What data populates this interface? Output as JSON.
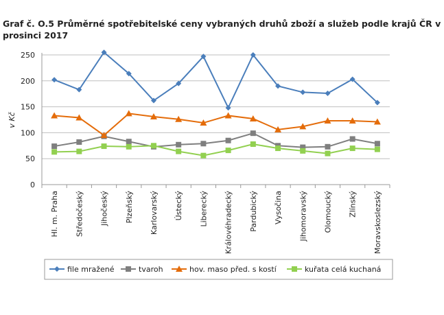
{
  "chart_data": {
    "type": "line",
    "title": "Graf č. O.5 Průměrné spotřebitelské ceny vybraných druhů zboží a služeb podle krajů ČR v prosinci 2017",
    "ylabel": "v Kč",
    "xlabel": "",
    "ylim": [
      0,
      250
    ],
    "yticks": [
      0,
      50,
      100,
      150,
      200,
      250
    ],
    "grid": true,
    "legend": "bottom",
    "categories": [
      "Hl. m. Praha",
      "Středočeský",
      "Jihočeský",
      "Plzeňský",
      "Karlovarský",
      "Ústecký",
      "Liberecký",
      "Královéhradecký",
      "Pardubický",
      "Vysočina",
      "Jihomoravský",
      "Olomoucký",
      "Zlínský",
      "Moravskoslezský"
    ],
    "series": [
      {
        "name": "file mražené",
        "color": "#4a7ebb",
        "marker": "diamond",
        "values": [
          202,
          183,
          255,
          214,
          162,
          195,
          247,
          148,
          250,
          190,
          178,
          176,
          203,
          158
        ]
      },
      {
        "name": "tvaroh",
        "color": "#7f7f7f",
        "marker": "square",
        "values": [
          74,
          82,
          93,
          83,
          73,
          77,
          79,
          85,
          99,
          75,
          72,
          73,
          88,
          79
        ]
      },
      {
        "name": "hov. maso před. s kostí",
        "color": "#e46c0a",
        "marker": "triangle",
        "values": [
          133,
          129,
          95,
          137,
          131,
          126,
          119,
          133,
          127,
          106,
          112,
          123,
          123,
          121
        ]
      },
      {
        "name": "kuřata celá kuchaná",
        "color": "#92d050",
        "marker": "square",
        "values": [
          63,
          64,
          74,
          73,
          75,
          64,
          56,
          66,
          78,
          70,
          65,
          60,
          70,
          68
        ]
      }
    ]
  }
}
